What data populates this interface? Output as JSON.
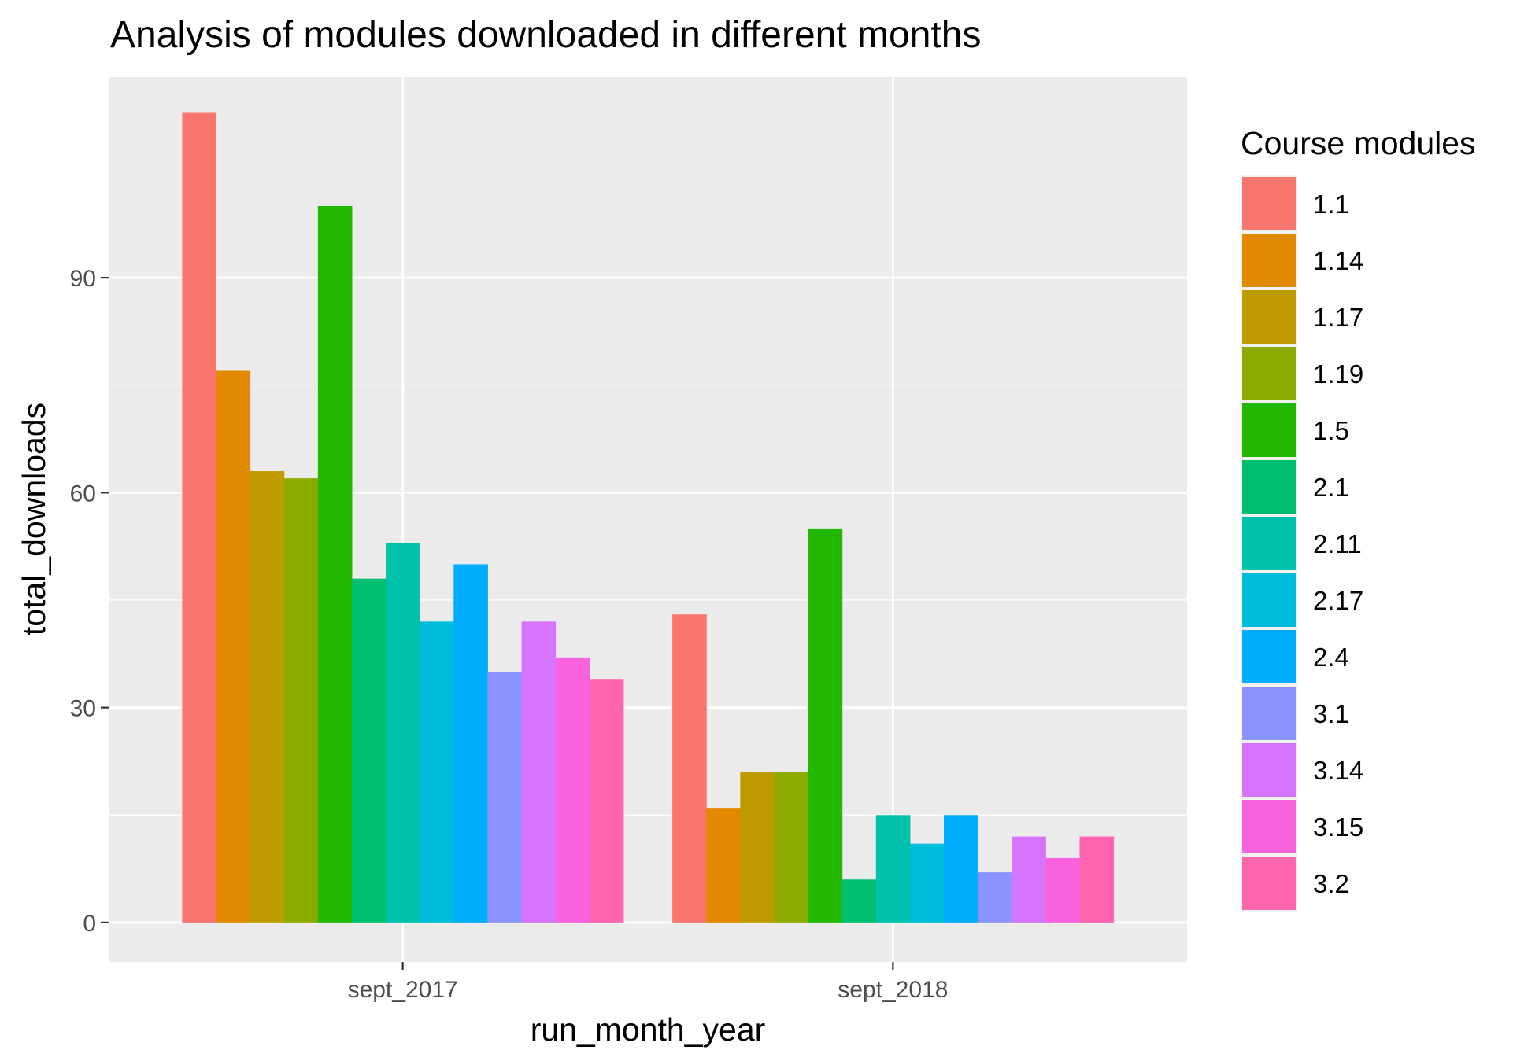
{
  "chart_data": {
    "type": "bar",
    "title": "Analysis of modules downloaded in different months",
    "xlabel": "run_month_year",
    "ylabel": "total_downloads",
    "categories": [
      "sept_2017",
      "sept_2018"
    ],
    "ylim": [
      -5.5,
      118
    ],
    "yticks": [
      0,
      30,
      60,
      90
    ],
    "yticklabels": [
      "0",
      "30",
      "60",
      "90"
    ],
    "grid": true,
    "legend": {
      "title": "Course modules",
      "position": "right"
    },
    "series": [
      {
        "name": "1.1",
        "color": "#F8766D",
        "values": [
          113,
          43
        ]
      },
      {
        "name": "1.14",
        "color": "#E18A00",
        "values": [
          77,
          16
        ]
      },
      {
        "name": "1.17",
        "color": "#BE9C00",
        "values": [
          63,
          21
        ]
      },
      {
        "name": "1.19",
        "color": "#8CAB00",
        "values": [
          62,
          21
        ]
      },
      {
        "name": "1.5",
        "color": "#24B700",
        "values": [
          100,
          55
        ]
      },
      {
        "name": "2.1",
        "color": "#00BE70",
        "values": [
          48,
          6
        ]
      },
      {
        "name": "2.11",
        "color": "#00C1AB",
        "values": [
          53,
          15
        ]
      },
      {
        "name": "2.17",
        "color": "#00BBDA",
        "values": [
          42,
          11
        ]
      },
      {
        "name": "2.4",
        "color": "#00ACFC",
        "values": [
          50,
          15
        ]
      },
      {
        "name": "3.1",
        "color": "#8B93FF",
        "values": [
          35,
          7
        ]
      },
      {
        "name": "3.14",
        "color": "#D575FE",
        "values": [
          42,
          12
        ]
      },
      {
        "name": "3.15",
        "color": "#F962DD",
        "values": [
          37,
          9
        ]
      },
      {
        "name": "3.2",
        "color": "#FF65AC",
        "values": [
          34,
          12
        ]
      }
    ]
  }
}
